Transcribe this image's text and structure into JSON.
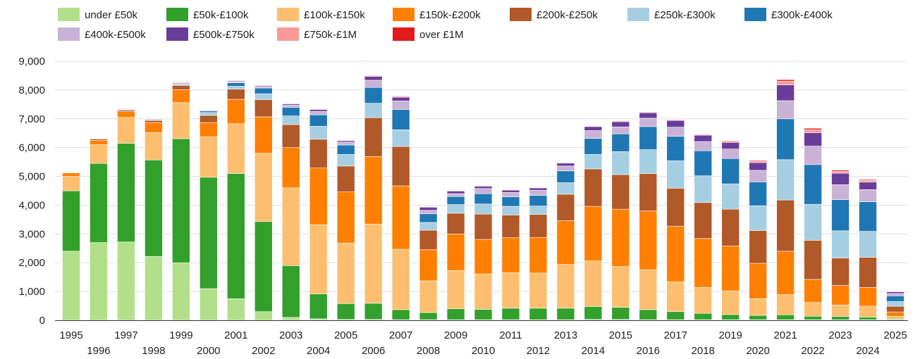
{
  "chart_data": {
    "type": "bar",
    "stacked": true,
    "title": "",
    "xlabel": "",
    "ylabel": "",
    "ylim": [
      0,
      9000
    ],
    "y_ticks": [
      0,
      1000,
      2000,
      3000,
      4000,
      5000,
      6000,
      7000,
      8000,
      9000
    ],
    "y_tick_labels": [
      "0",
      "1,000",
      "2,000",
      "3,000",
      "4,000",
      "5,000",
      "6,000",
      "7,000",
      "8,000",
      "9,000"
    ],
    "grid": true,
    "legend_position": "top",
    "categories": [
      "1995",
      "1996",
      "1997",
      "1998",
      "1999",
      "2000",
      "2001",
      "2002",
      "2003",
      "2004",
      "2005",
      "2006",
      "2007",
      "2008",
      "2009",
      "2010",
      "2011",
      "2012",
      "2013",
      "2014",
      "2015",
      "2016",
      "2017",
      "2018",
      "2019",
      "2020",
      "2021",
      "2022",
      "2023",
      "2024",
      "2025"
    ],
    "series": [
      {
        "name": "under £50k",
        "color": "#b2df8a",
        "values": [
          2400,
          2700,
          2720,
          2220,
          2000,
          1100,
          750,
          300,
          100,
          50,
          30,
          30,
          20,
          20,
          20,
          20,
          20,
          20,
          20,
          30,
          30,
          20,
          20,
          20,
          20,
          20,
          20,
          20,
          20,
          20,
          10
        ]
      },
      {
        "name": "£50k-£100k",
        "color": "#33a02c",
        "values": [
          2100,
          2750,
          3430,
          3350,
          4310,
          3870,
          4350,
          3130,
          1800,
          870,
          550,
          560,
          350,
          250,
          380,
          360,
          400,
          400,
          400,
          450,
          420,
          350,
          280,
          220,
          180,
          150,
          170,
          120,
          110,
          90,
          30
        ]
      },
      {
        "name": "£100k-£150k",
        "color": "#fdbf6f",
        "values": [
          500,
          650,
          900,
          950,
          1250,
          1400,
          1730,
          2370,
          2700,
          2400,
          2100,
          2750,
          2100,
          1100,
          1330,
          1230,
          1230,
          1220,
          1520,
          1580,
          1420,
          1380,
          1040,
          900,
          820,
          580,
          700,
          480,
          400,
          380,
          100
        ]
      },
      {
        "name": "£150k-£200k",
        "color": "#ff7f00",
        "values": [
          120,
          150,
          200,
          350,
          450,
          500,
          850,
          1270,
          1400,
          1970,
          1780,
          2350,
          2200,
          1080,
          1270,
          1200,
          1220,
          1240,
          1520,
          1900,
          1990,
          2050,
          1930,
          1700,
          1560,
          1230,
          1510,
          800,
          680,
          650,
          150
        ]
      },
      {
        "name": "£200k-£250k",
        "color": "#b15928",
        "values": [
          0,
          50,
          50,
          70,
          150,
          250,
          350,
          600,
          800,
          1000,
          900,
          1350,
          1370,
          680,
          720,
          880,
          790,
          800,
          920,
          1300,
          1200,
          1300,
          1320,
          1250,
          1280,
          1140,
          1780,
          1360,
          950,
          1050,
          200
        ]
      },
      {
        "name": "£250k-£300k",
        "color": "#a6cee3",
        "values": [
          0,
          0,
          0,
          0,
          50,
          100,
          100,
          200,
          300,
          450,
          400,
          500,
          580,
          270,
          300,
          350,
          300,
          290,
          400,
          500,
          800,
          830,
          950,
          930,
          880,
          860,
          1400,
          1250,
          950,
          900,
          160
        ]
      },
      {
        "name": "£300k-£400k",
        "color": "#1f78b4",
        "values": [
          0,
          0,
          0,
          0,
          0,
          50,
          120,
          200,
          300,
          400,
          330,
          550,
          700,
          300,
          280,
          360,
          330,
          370,
          410,
          560,
          620,
          800,
          850,
          870,
          880,
          830,
          1420,
          1380,
          1080,
          1030,
          200
        ]
      },
      {
        "name": "£400k-£500k",
        "color": "#cab2d6",
        "values": [
          0,
          20,
          30,
          30,
          40,
          30,
          30,
          50,
          80,
          120,
          100,
          250,
          300,
          120,
          100,
          180,
          150,
          180,
          170,
          270,
          240,
          290,
          320,
          320,
          330,
          400,
          630,
          640,
          520,
          420,
          80
        ]
      },
      {
        "name": "£500k-£750k",
        "color": "#6a3d9a",
        "values": [
          0,
          10,
          20,
          20,
          20,
          10,
          30,
          30,
          40,
          60,
          50,
          130,
          130,
          110,
          90,
          80,
          80,
          80,
          100,
          140,
          180,
          190,
          230,
          220,
          230,
          270,
          550,
          470,
          400,
          260,
          60
        ]
      },
      {
        "name": "£750k-£1M",
        "color": "#fb9a99",
        "values": [
          0,
          10,
          10,
          10,
          20,
          10,
          20,
          20,
          20,
          20,
          20,
          30,
          30,
          20,
          20,
          20,
          20,
          20,
          20,
          20,
          30,
          30,
          30,
          30,
          40,
          50,
          130,
          100,
          70,
          60,
          20
        ]
      },
      {
        "name": "over £1M",
        "color": "#e31a1c",
        "values": [
          0,
          0,
          0,
          0,
          0,
          0,
          0,
          0,
          0,
          0,
          0,
          20,
          20,
          10,
          10,
          10,
          10,
          10,
          10,
          10,
          10,
          10,
          10,
          10,
          20,
          30,
          50,
          50,
          40,
          30,
          10
        ]
      }
    ]
  }
}
